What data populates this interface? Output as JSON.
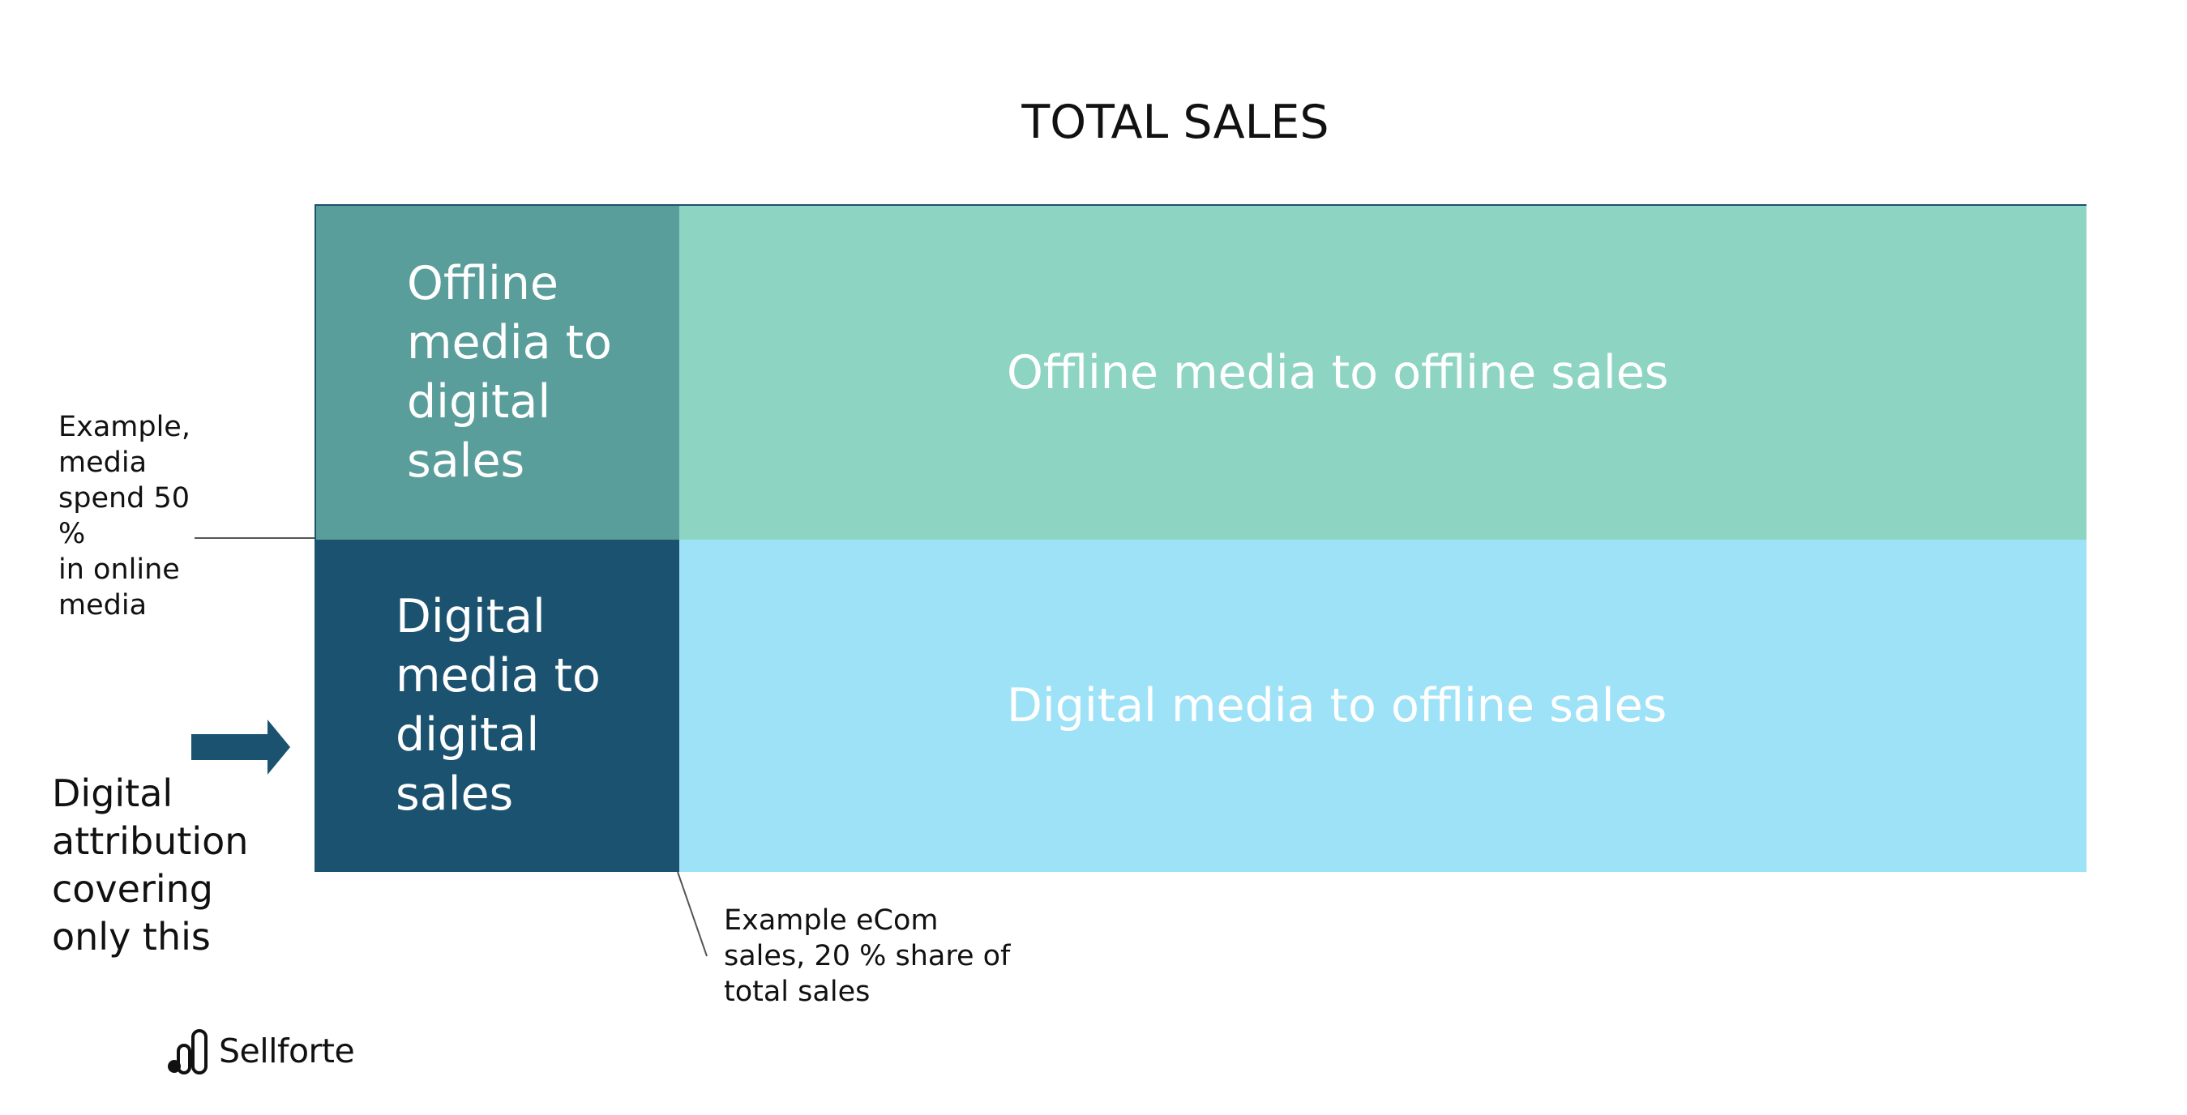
{
  "title": "TOTAL SALES",
  "cells": {
    "top_left": "Offline\nmedia to\ndigital\nsales",
    "top_right": "Offline media to offline sales",
    "bottom_left": "Digital\nmedia to\ndigital\nsales",
    "bottom_right": "Digital media to offline sales"
  },
  "notes": {
    "left": "Example,\nmedia\nspend 50 %\nin online\nmedia",
    "bottom": "Example eCom\nsales, 20 % share of\ntotal sales",
    "attribution": "Digital\nattribution\ncovering\nonly this"
  },
  "brand": {
    "name": "Sellforte",
    "logo_icon": "sellforte-logo-icon"
  },
  "colors": {
    "offline_to_digital": "#5a9e9b",
    "offline_to_offline": "#8ed4c2",
    "digital_to_digital": "#1b5270",
    "digital_to_offline": "#9ee2f7",
    "arrow": "#1b5270"
  }
}
